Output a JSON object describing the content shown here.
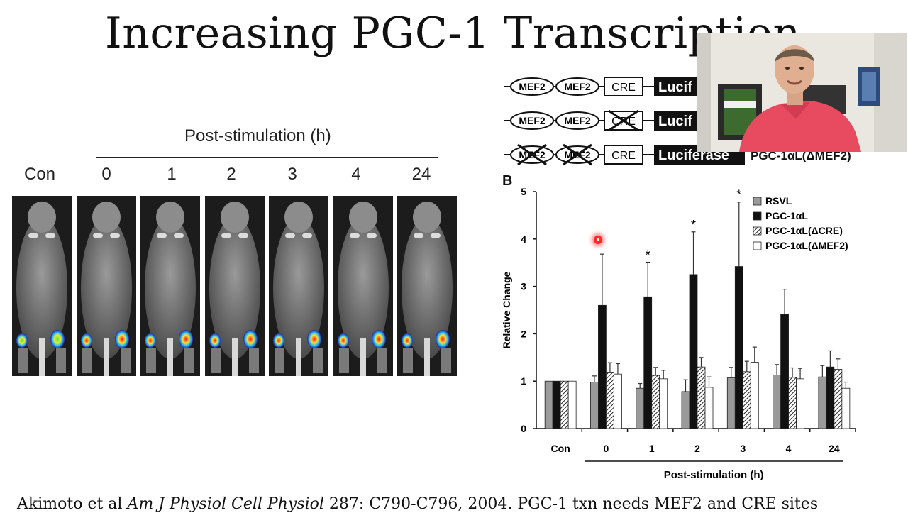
{
  "slide": {
    "title": "Increasing PGC-1 Transcription",
    "citation_prefix": "Akimoto et al ",
    "citation_journal": "Am J Physiol Cell Physiol",
    "citation_suffix": " 287: C790-C796, 2004. PGC-1 txn needs MEF2 and CRE sites"
  },
  "figure_a": {
    "header": "Post-stimulation (h)",
    "timepoints": [
      "Con",
      "0",
      "1",
      "2",
      "3",
      "4",
      "24"
    ]
  },
  "constructs": {
    "mef2": "MEF2",
    "cre": "CRE",
    "rows": [
      {
        "reporter": "Lucif"
      },
      {
        "reporter": "Lucif"
      },
      {
        "reporter": "Luciferase",
        "name": "PGC-1αL(ΔMEF2)"
      }
    ]
  },
  "chart_data": {
    "type": "bar",
    "panel_label": "B",
    "ylabel": "Relative Change",
    "xlabel": "Post-stimulation (h)",
    "categories": [
      "Con",
      "0",
      "1",
      "2",
      "3",
      "4",
      "24"
    ],
    "ylim": [
      0,
      5
    ],
    "yticks": [
      "0",
      "1",
      "2",
      "3",
      "4",
      "5"
    ],
    "series": [
      {
        "name": "RSVL",
        "color": "#9a9a9a",
        "pattern": "solid",
        "values": [
          1.0,
          0.98,
          0.85,
          0.78,
          1.07,
          1.13,
          1.09
        ],
        "errors": [
          0,
          0.13,
          0.1,
          0.25,
          0.22,
          0.22,
          0.24
        ]
      },
      {
        "name": "PGC-1αL",
        "color": "#111111",
        "pattern": "solid",
        "values": [
          1.0,
          2.6,
          2.78,
          3.25,
          3.42,
          2.41,
          1.3
        ],
        "errors": [
          0,
          1.08,
          0.73,
          0.9,
          1.36,
          0.53,
          0.34
        ]
      },
      {
        "name": "PGC-1αL(ΔCRE)",
        "color": "#555555",
        "pattern": "hatch",
        "values": [
          1.0,
          1.19,
          1.12,
          1.3,
          1.2,
          1.08,
          1.25
        ],
        "errors": [
          0,
          0.2,
          0.17,
          0.2,
          0.22,
          0.2,
          0.22
        ]
      },
      {
        "name": "PGC-1αL(ΔMEF2)",
        "color": "#ffffff",
        "pattern": "solid",
        "values": [
          1.0,
          1.15,
          1.05,
          0.87,
          1.4,
          1.05,
          0.85
        ],
        "errors": [
          0,
          0.22,
          0.18,
          0.22,
          0.32,
          0.22,
          0.13
        ]
      }
    ],
    "significance_marker": "*",
    "significant_categories": [
      "1",
      "2",
      "3"
    ],
    "legend_position": "top-right"
  },
  "colors": {
    "laser_pointer": "#ff2a2a",
    "speaker_shirt": "#e84a5f"
  },
  "icons": [
    "laser-pointer-dot",
    "webcam-overlay"
  ]
}
